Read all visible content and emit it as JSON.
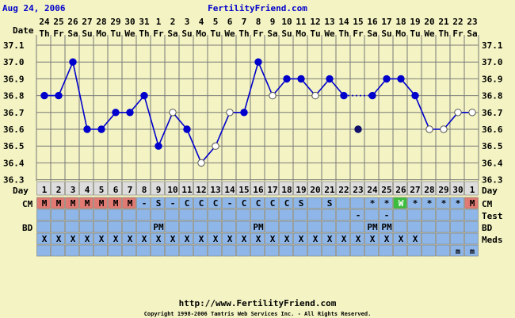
{
  "header": {
    "date": "Aug 24, 2006",
    "site_title": "FertilityFriend.com"
  },
  "footer": {
    "url": "http://www.FertilityFriend.com",
    "copyright": "Copyright 1998-2006 Tamtris Web Services Inc. - All Rights Reserved."
  },
  "row_labels": {
    "date": "Date",
    "day": "Day",
    "cm": "CM",
    "test": "Test",
    "bd": "BD",
    "meds": "Meds"
  },
  "colors": {
    "background": "#f3f3c3",
    "line": "#0000cc",
    "header_text": "#0000cc",
    "day_cell": "#dddddd",
    "grid_row": "#8fb6e8",
    "cm_menses": "#e07a72",
    "cm_watery": "#3dbd3d"
  },
  "chart_data": {
    "type": "line",
    "ylim": [
      36.3,
      37.1
    ],
    "y_ticks": [
      "37.1",
      "37.0",
      "36.9",
      "36.8",
      "36.7",
      "36.6",
      "36.5",
      "36.4",
      "36.3"
    ],
    "dates": [
      "24",
      "25",
      "26",
      "27",
      "28",
      "29",
      "30",
      "31",
      "1",
      "2",
      "3",
      "4",
      "5",
      "6",
      "7",
      "8",
      "9",
      "10",
      "11",
      "12",
      "13",
      "14",
      "15",
      "16",
      "17",
      "18",
      "19",
      "20",
      "21",
      "22",
      "23"
    ],
    "weekdays": [
      "Th",
      "Fr",
      "Sa",
      "Su",
      "Mo",
      "Tu",
      "We",
      "Th",
      "Fr",
      "Sa",
      "Su",
      "Mo",
      "Tu",
      "We",
      "Th",
      "Fr",
      "Sa",
      "Su",
      "Mo",
      "Tu",
      "We",
      "Th",
      "Fr",
      "Sa",
      "Su",
      "Mo",
      "Tu",
      "We",
      "Th",
      "Fr",
      "Sa"
    ],
    "cycle_days": [
      "1",
      "2",
      "3",
      "4",
      "5",
      "6",
      "7",
      "8",
      "9",
      "10",
      "11",
      "12",
      "13",
      "14",
      "15",
      "16",
      "17",
      "18",
      "19",
      "20",
      "21",
      "22",
      "23",
      "24",
      "25",
      "26",
      "27",
      "28",
      "29",
      "30",
      "1"
    ],
    "temps": [
      36.8,
      36.8,
      37.0,
      36.6,
      36.6,
      36.7,
      36.7,
      36.8,
      36.5,
      36.7,
      36.6,
      36.4,
      36.5,
      36.7,
      36.7,
      37.0,
      36.8,
      36.9,
      36.9,
      36.8,
      36.9,
      36.8,
      null,
      36.8,
      36.9,
      36.9,
      36.8,
      36.6,
      36.6,
      36.7,
      36.7
    ],
    "hollow": [
      false,
      false,
      false,
      false,
      false,
      false,
      false,
      false,
      false,
      true,
      false,
      true,
      true,
      true,
      false,
      false,
      true,
      false,
      false,
      true,
      false,
      false,
      false,
      false,
      false,
      false,
      false,
      true,
      true,
      true,
      true
    ],
    "dotted_segments": [
      [
        21,
        23
      ]
    ],
    "isolated_points": [
      {
        "day_index": 22,
        "temp": 36.6
      }
    ],
    "cm": [
      "M",
      "M",
      "M",
      "M",
      "M",
      "M",
      "M",
      "-",
      "S",
      "-",
      "C",
      "C",
      "C",
      "-",
      "C",
      "C",
      "C",
      "C",
      "S",
      "",
      "S",
      "",
      "",
      "*",
      "*",
      "W",
      "*",
      "*",
      "*",
      "*",
      "M"
    ],
    "test": [
      "",
      "",
      "",
      "",
      "",
      "",
      "",
      "",
      "",
      "",
      "",
      "",
      "",
      "",
      "",
      "",
      "",
      "",
      "",
      "",
      "",
      "",
      "-",
      "",
      "-",
      "",
      "",
      "",
      "",
      "",
      ""
    ],
    "bd": [
      "",
      "",
      "",
      "",
      "",
      "",
      "",
      "",
      "PM",
      "",
      "",
      "",
      "",
      "",
      "",
      "PM",
      "",
      "",
      "",
      "",
      "",
      "",
      "",
      "PM",
      "PM",
      "",
      "",
      "",
      "",
      "",
      ""
    ],
    "meds": [
      "X",
      "X",
      "X",
      "X",
      "X",
      "X",
      "X",
      "X",
      "X",
      "X",
      "X",
      "X",
      "X",
      "X",
      "X",
      "X",
      "X",
      "X",
      "X",
      "X",
      "X",
      "X",
      "X",
      "X",
      "X",
      "X",
      "X",
      "",
      "",
      "",
      ""
    ],
    "extra": [
      "",
      "",
      "",
      "",
      "",
      "",
      "",
      "",
      "",
      "",
      "",
      "",
      "",
      "",
      "",
      "",
      "",
      "",
      "",
      "",
      "",
      "",
      "",
      "",
      "",
      "",
      "",
      "",
      "",
      "m",
      "m"
    ]
  }
}
